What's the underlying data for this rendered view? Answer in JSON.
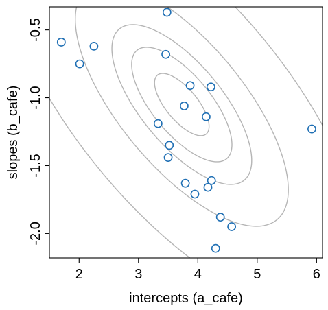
{
  "chart_data": {
    "type": "scatter",
    "xlabel": "intercepts (a_cafe)",
    "ylabel": "slopes (b_cafe)",
    "xlim": [
      1.5,
      6.1
    ],
    "ylim": [
      -2.18,
      -0.33
    ],
    "x_ticks": [
      2,
      3,
      4,
      5,
      6
    ],
    "y_ticks": [
      -2.0,
      -1.5,
      -1.0,
      -0.5
    ],
    "x_tick_labels": [
      "2",
      "3",
      "4",
      "5",
      "6"
    ],
    "y_tick_labels": [
      "-2.0",
      "-1.5",
      "-1.0",
      "-0.5"
    ],
    "grid": false,
    "legend": "none",
    "point_color": "#1f6fb4",
    "contour_color": "#b5b5b5",
    "points": [
      {
        "x": 1.7,
        "y": -0.59
      },
      {
        "x": 2.01,
        "y": -0.75
      },
      {
        "x": 2.25,
        "y": -0.62
      },
      {
        "x": 3.48,
        "y": -0.37
      },
      {
        "x": 3.46,
        "y": -0.68
      },
      {
        "x": 3.87,
        "y": -0.91
      },
      {
        "x": 4.22,
        "y": -0.92
      },
      {
        "x": 3.77,
        "y": -1.06
      },
      {
        "x": 4.14,
        "y": -1.14
      },
      {
        "x": 3.33,
        "y": -1.19
      },
      {
        "x": 5.92,
        "y": -1.23
      },
      {
        "x": 3.52,
        "y": -1.35
      },
      {
        "x": 3.5,
        "y": -1.44
      },
      {
        "x": 3.79,
        "y": -1.63
      },
      {
        "x": 4.23,
        "y": -1.61
      },
      {
        "x": 4.17,
        "y": -1.66
      },
      {
        "x": 3.95,
        "y": -1.71
      },
      {
        "x": 4.38,
        "y": -1.88
      },
      {
        "x": 4.57,
        "y": -1.95
      },
      {
        "x": 4.3,
        "y": -2.11
      }
    ],
    "contours": {
      "center": {
        "x": 3.73,
        "y": -1.05
      },
      "sd_a": 1.0,
      "sd_b": 0.5,
      "rho": -0.7,
      "levels": [
        0.1,
        0.3,
        0.5,
        0.8,
        0.99
      ]
    }
  }
}
